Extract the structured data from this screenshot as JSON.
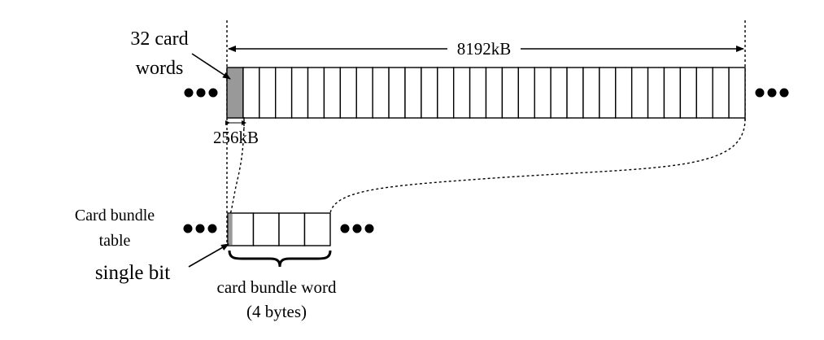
{
  "labels": {
    "top_cells_label_line1": "32 card",
    "top_cells_label_line2": "words",
    "total_size": "8192kB",
    "cell_size": "256kB",
    "table_label_line1": "Card bundle",
    "table_label_line2": "table",
    "bit_label": "single bit",
    "word_label_line1": "card bundle word",
    "word_label_line2": "(4 bytes)"
  },
  "top_array": {
    "cell_count": 32,
    "highlighted_index": 0
  },
  "bottom_array": {
    "cell_count": 4,
    "highlighted_bit": true
  },
  "colors": {
    "highlight": "#999999",
    "stroke": "#000000"
  }
}
